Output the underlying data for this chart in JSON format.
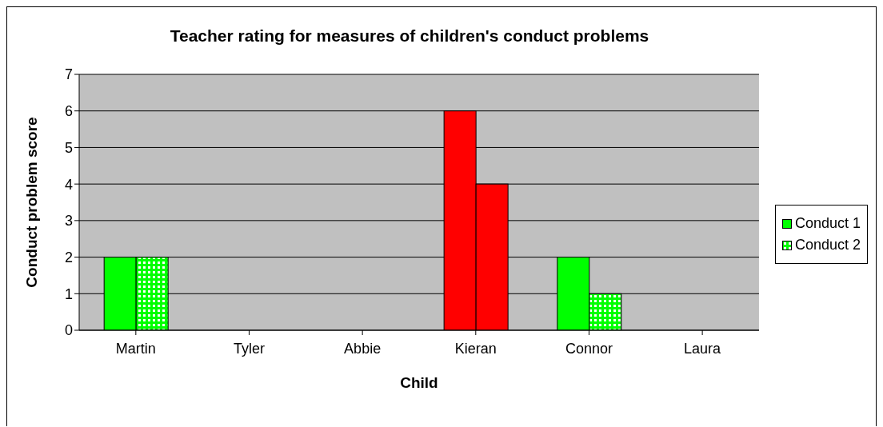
{
  "chart_data": {
    "type": "bar",
    "title": "Teacher rating for measures of children's conduct problems",
    "xlabel": "Child",
    "ylabel": "Conduct problem score",
    "categories": [
      "Martin",
      "Tyler",
      "Abbie",
      "Kieran",
      "Connor",
      "Laura"
    ],
    "series": [
      {
        "name": "Conduct 1",
        "color": "#00ff00",
        "colors": [
          "#00ff00",
          "#00ff00",
          "#00ff00",
          "#ff0000",
          "#00ff00",
          "#00ff00"
        ],
        "values": [
          2,
          0,
          0,
          6,
          2,
          0
        ]
      },
      {
        "name": "Conduct 2",
        "color": "#00ff00",
        "colors": [
          "#00ff00",
          "#00ff00",
          "#00ff00",
          "#ff0000",
          "#00ff00",
          "#00ff00"
        ],
        "values": [
          2,
          0,
          0,
          4,
          1,
          0
        ]
      }
    ],
    "ylim": [
      0,
      7
    ],
    "yticks": [
      0,
      1,
      2,
      3,
      4,
      5,
      6,
      7
    ],
    "grid": "y",
    "legend": "right"
  }
}
